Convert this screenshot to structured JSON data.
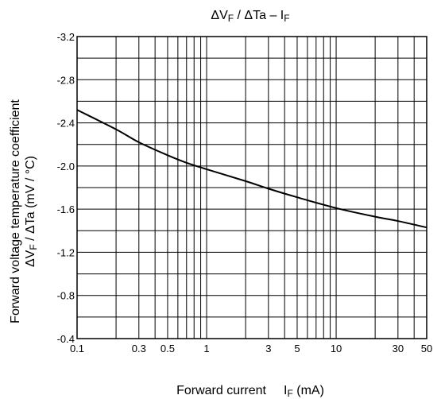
{
  "chart_data": {
    "type": "line",
    "title": {
      "prefix": "ΔV",
      "sub1": "F",
      "mid": " / ΔTa – I",
      "sub2": "F"
    },
    "xlabel": {
      "main": "Forward current",
      "symbol": "I",
      "sub": "F",
      "unit": " (mA)"
    },
    "ylabel": {
      "line1": "Forward voltage temperature coefficient",
      "line2_prefix": "ΔV",
      "line2_sub": "F",
      "line2_suffix": " / ΔTa (mV / °C)"
    },
    "x_scale": "log",
    "xlim": [
      0.1,
      50
    ],
    "ylim": [
      -0.4,
      -3.2
    ],
    "x_ticks": [
      {
        "value": 0.1,
        "label": "0.1"
      },
      {
        "value": 0.3,
        "label": "0.3"
      },
      {
        "value": 0.5,
        "label": "0.5"
      },
      {
        "value": 1,
        "label": "1"
      },
      {
        "value": 3,
        "label": "3"
      },
      {
        "value": 5,
        "label": "5"
      },
      {
        "value": 10,
        "label": "10"
      },
      {
        "value": 30,
        "label": "30"
      },
      {
        "value": 50,
        "label": "50"
      }
    ],
    "y_ticks": [
      {
        "value": -3.2,
        "label": "-3.2"
      },
      {
        "value": -2.8,
        "label": "-2.8"
      },
      {
        "value": -2.4,
        "label": "-2.4"
      },
      {
        "value": -2.0,
        "label": "-2.0"
      },
      {
        "value": -1.6,
        "label": "-1.6"
      },
      {
        "value": -1.2,
        "label": "-1.2"
      },
      {
        "value": -0.8,
        "label": "-0.8"
      },
      {
        "value": -0.4,
        "label": "-0.4"
      }
    ],
    "x_gridlines": [
      0.1,
      0.2,
      0.3,
      0.4,
      0.5,
      0.6,
      0.7,
      0.8,
      0.9,
      1,
      2,
      3,
      4,
      5,
      6,
      7,
      8,
      9,
      10,
      20,
      30,
      40,
      50
    ],
    "y_gridlines": [
      -3.2,
      -3.0,
      -2.8,
      -2.6,
      -2.4,
      -2.2,
      -2.0,
      -1.8,
      -1.6,
      -1.4,
      -1.2,
      -1.0,
      -0.8,
      -0.6,
      -0.4
    ],
    "grid": true,
    "series": [
      {
        "x": [
          0.1,
          0.2,
          0.3,
          0.5,
          0.7,
          1,
          2,
          3,
          5,
          10,
          20,
          30,
          50
        ],
        "y": [
          -2.52,
          -2.34,
          -2.22,
          -2.1,
          -2.03,
          -1.97,
          -1.86,
          -1.79,
          -1.71,
          -1.61,
          -1.53,
          -1.49,
          -1.43
        ]
      }
    ],
    "colors": {
      "line": "#000000",
      "grid": "#000000",
      "frame": "#000000"
    }
  }
}
